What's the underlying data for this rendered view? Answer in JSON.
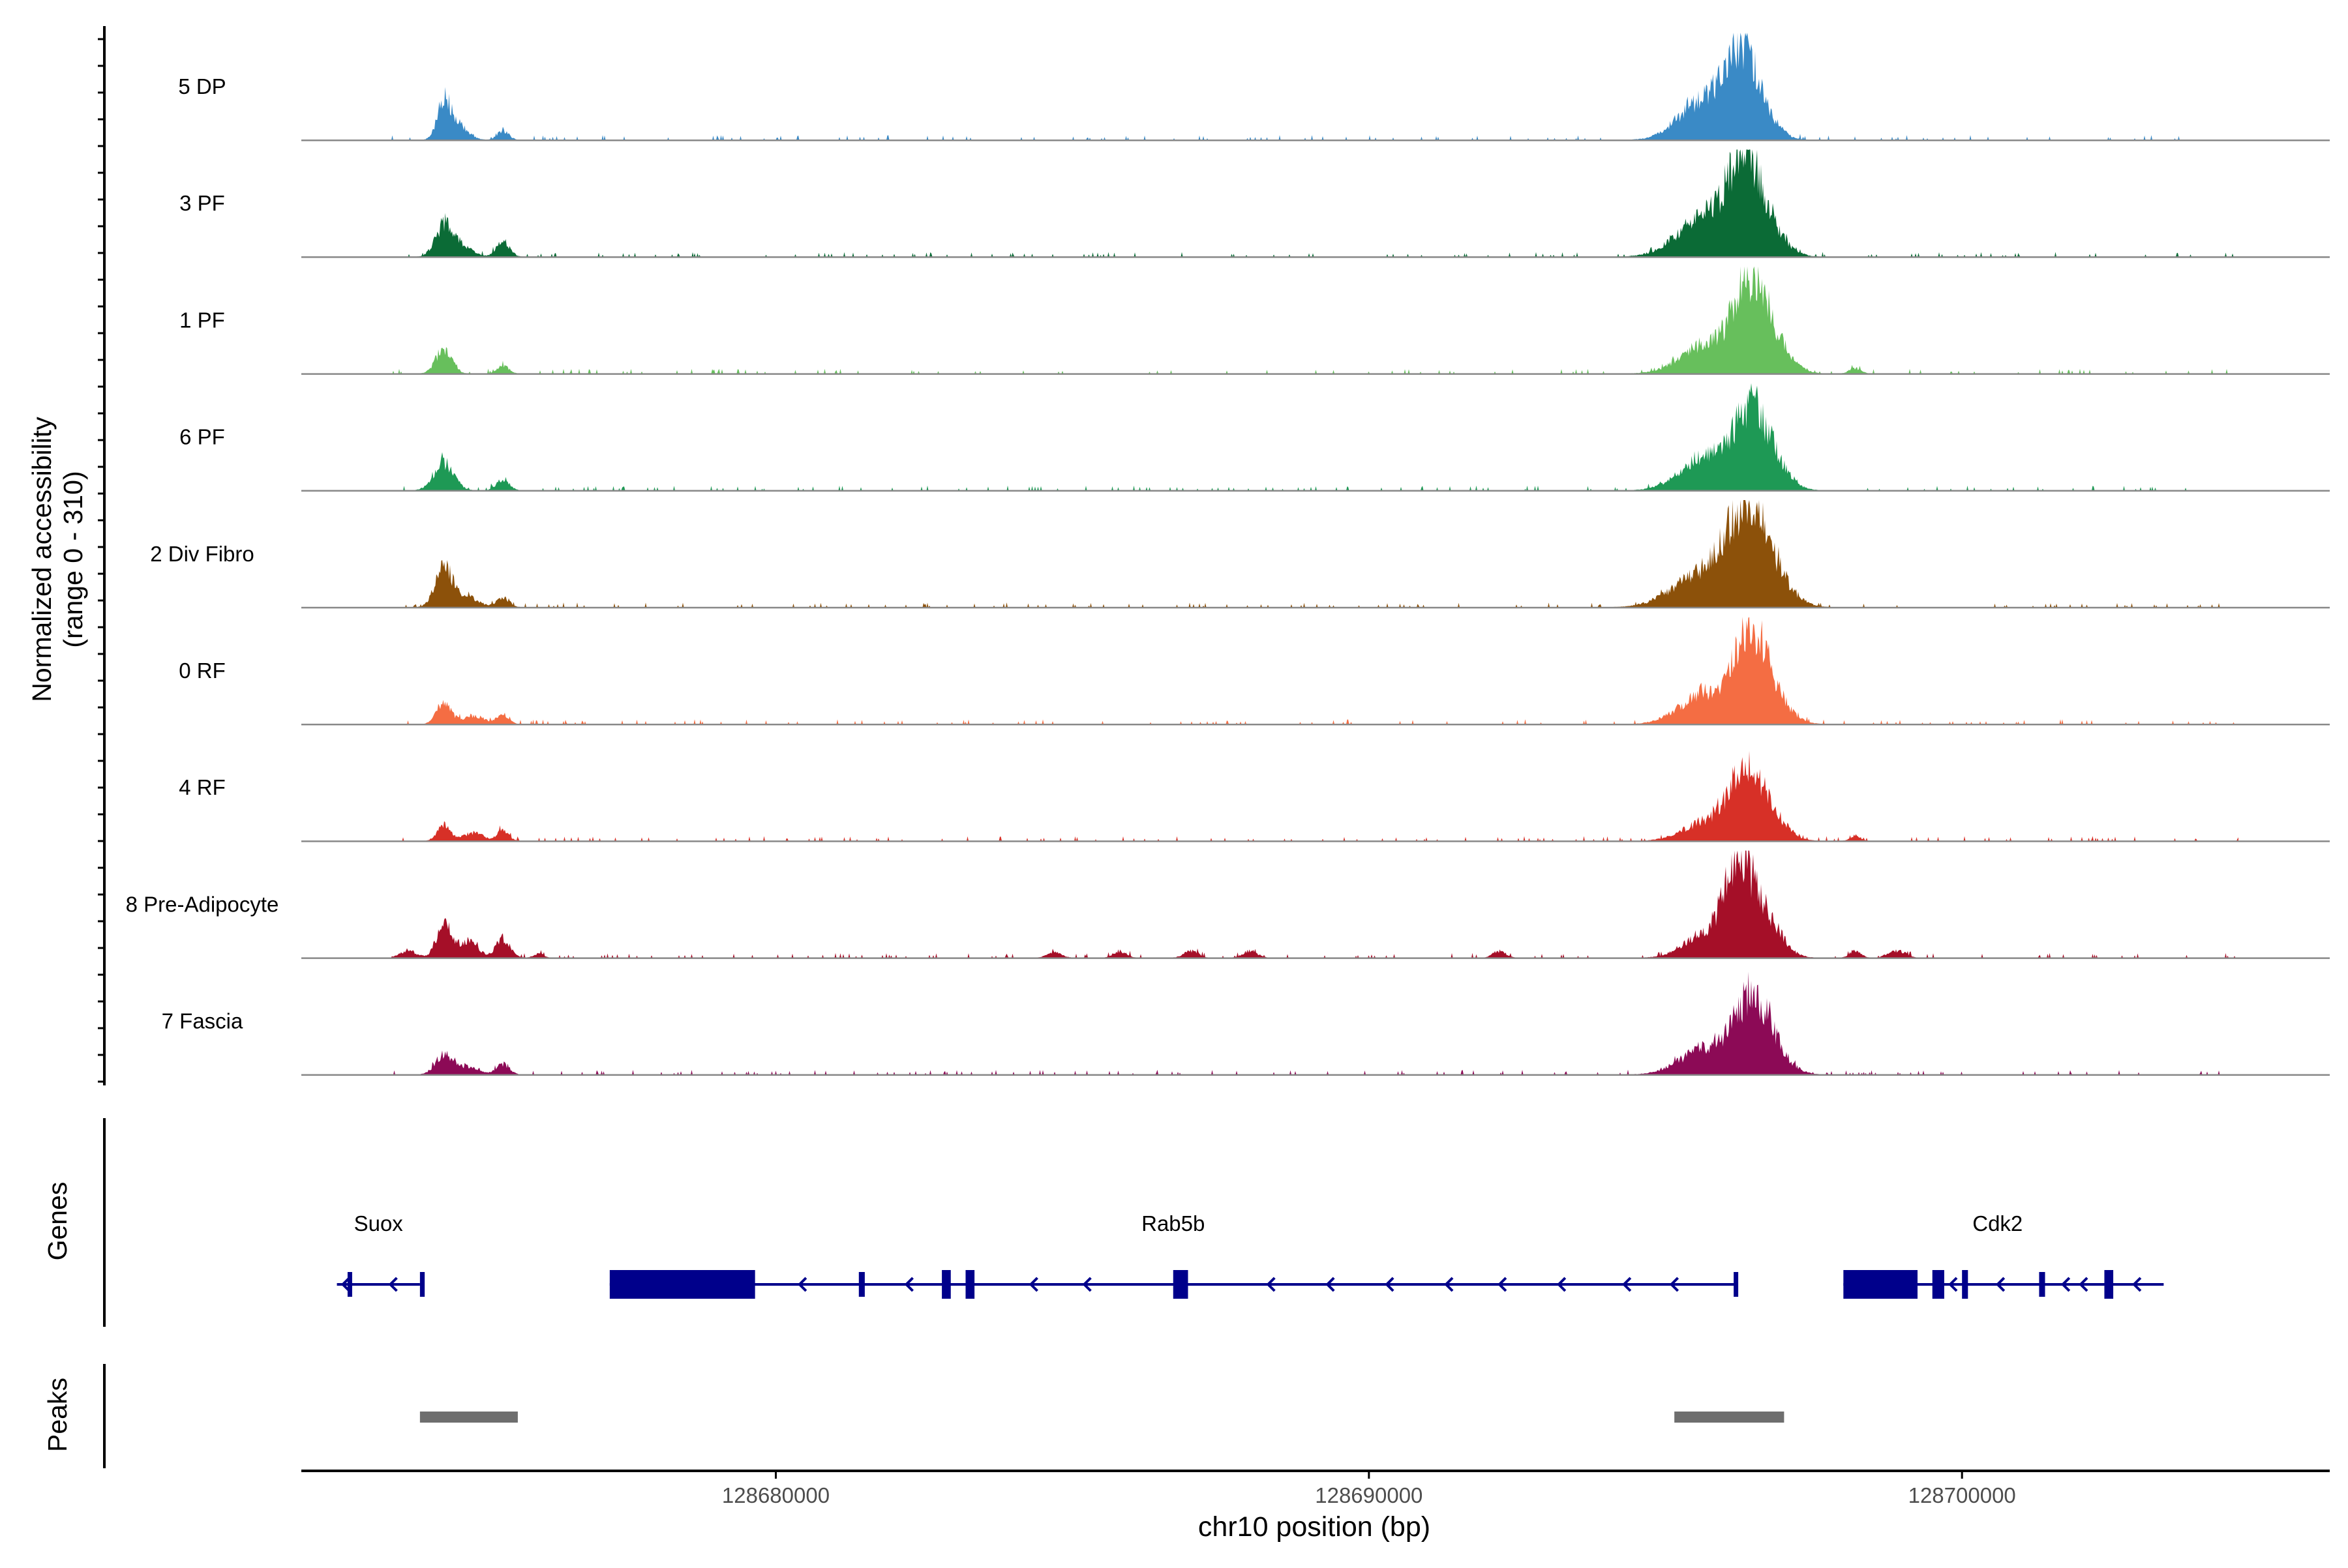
{
  "chart_data": {
    "type": "area",
    "ylabel_line1": "Normalized accessibility",
    "ylabel_line2": "(range 0 - 310)",
    "xlabel": "chr10 position (bp)",
    "xlim": [
      128672000,
      128706200
    ],
    "ylim": [
      0,
      310
    ],
    "x_ticks": [
      128680000,
      128690000,
      128700000
    ],
    "x_tick_labels": [
      "128680000",
      "128690000",
      "128700000"
    ],
    "series": [
      {
        "name": "5 DP",
        "color": "#3A8AC6",
        "peaks": [
          [
            128674400,
            120,
            0.9
          ],
          [
            128674600,
            60,
            1.5
          ],
          [
            128675400,
            35,
            0.8
          ],
          [
            128695600,
            140,
            3.2
          ],
          [
            128696200,
            240,
            2.0
          ],
          [
            128696500,
            150,
            2.4
          ]
        ]
      },
      {
        "name": "3 PF",
        "color": "#0B6B36",
        "peaks": [
          [
            128674400,
            110,
            1.2
          ],
          [
            128674700,
            40,
            1.5
          ],
          [
            128675400,
            60,
            0.9
          ],
          [
            128695700,
            160,
            3.8
          ],
          [
            128696300,
            250,
            2.0
          ],
          [
            128696600,
            150,
            2.6
          ]
        ]
      },
      {
        "name": "1 PF",
        "color": "#67BF5C",
        "peaks": [
          [
            128674400,
            90,
            1.1
          ],
          [
            128675400,
            30,
            0.8
          ],
          [
            128695700,
            110,
            3.5
          ],
          [
            128696400,
            250,
            2.2
          ],
          [
            128696700,
            140,
            2.6
          ],
          [
            128698200,
            20,
            0.8
          ]
        ]
      },
      {
        "name": "6 PF",
        "color": "#1E9955",
        "peaks": [
          [
            128674400,
            100,
            1.4
          ],
          [
            128675400,
            40,
            0.9
          ],
          [
            128695700,
            130,
            3.5
          ],
          [
            128696400,
            210,
            2.3
          ],
          [
            128696700,
            120,
            2.5
          ]
        ]
      },
      {
        "name": "2 Div Fibro",
        "color": "#8C510A",
        "peaks": [
          [
            128674400,
            150,
            1.2
          ],
          [
            128674800,
            40,
            1.5
          ],
          [
            128675400,
            35,
            0.9
          ],
          [
            128695600,
            120,
            4.0
          ],
          [
            128696300,
            270,
            2.6
          ],
          [
            128696700,
            150,
            2.8
          ]
        ]
      },
      {
        "name": "0 RF",
        "color": "#F46D43",
        "peaks": [
          [
            128674400,
            80,
            1.0
          ],
          [
            128674900,
            30,
            1.6
          ],
          [
            128675400,
            35,
            0.8
          ],
          [
            128695700,
            120,
            3.5
          ],
          [
            128696400,
            250,
            2.0
          ],
          [
            128696700,
            140,
            2.5
          ]
        ]
      },
      {
        "name": "4 RF",
        "color": "#D73027",
        "peaks": [
          [
            128674400,
            60,
            0.9
          ],
          [
            128674900,
            30,
            1.4
          ],
          [
            128675400,
            40,
            0.8
          ],
          [
            128695700,
            70,
            3.2
          ],
          [
            128696300,
            200,
            2.2
          ],
          [
            128696700,
            110,
            2.4
          ],
          [
            128698200,
            20,
            0.7
          ]
        ]
      },
      {
        "name": "8 Pre-Adipocyte",
        "color": "#A50F28",
        "peaks": [
          [
            128673800,
            25,
            1.2
          ],
          [
            128674400,
            130,
            1.0
          ],
          [
            128674800,
            60,
            1.4
          ],
          [
            128675400,
            70,
            1.0
          ],
          [
            128676000,
            15,
            0.7
          ],
          [
            128684700,
            20,
            1.0
          ],
          [
            128685800,
            25,
            0.9
          ],
          [
            128687000,
            25,
            1.0
          ],
          [
            128688000,
            25,
            1.0
          ],
          [
            128692200,
            25,
            0.9
          ],
          [
            128695700,
            90,
            3.0
          ],
          [
            128696200,
            270,
            1.8
          ],
          [
            128696600,
            180,
            2.4
          ],
          [
            128698200,
            25,
            0.8
          ],
          [
            128698800,
            20,
            0.8
          ],
          [
            128699000,
            20,
            0.8
          ]
        ]
      },
      {
        "name": "7 Fascia",
        "color": "#8C0A56",
        "peaks": [
          [
            128674400,
            70,
            1.2
          ],
          [
            128674800,
            30,
            1.5
          ],
          [
            128675400,
            40,
            0.9
          ],
          [
            128695700,
            100,
            3.5
          ],
          [
            128696400,
            200,
            2.2
          ],
          [
            128696700,
            120,
            2.5
          ]
        ]
      }
    ],
    "genes": [
      {
        "name": "Suox",
        "label_x": 128673300,
        "strand": "-",
        "start": 128672600,
        "end": 128674000,
        "exons": [
          [
            128672780,
            128672840,
            "thin"
          ],
          [
            128674000,
            128674080,
            "thin"
          ]
        ],
        "arrows": [
          128672700,
          128673500
        ]
      },
      {
        "name": "Rab5b",
        "label_x": 128686700,
        "strand": "-",
        "start": 128677200,
        "end": 128696200,
        "exons": [
          [
            128677200,
            128679650,
            "thick"
          ],
          [
            128681400,
            128681500,
            "thin"
          ],
          [
            128682800,
            128682950,
            "thick"
          ],
          [
            128683200,
            128683350,
            "thick"
          ],
          [
            128686700,
            128686950,
            "thick"
          ],
          [
            128696150,
            128696220,
            "thin"
          ]
        ],
        "arrows": [
          128680400,
          128682200,
          128684300,
          128685200,
          128688300,
          128689300,
          128690300,
          128691300,
          128692200,
          128693200,
          128694300,
          128695100
        ]
      },
      {
        "name": "Cdk2",
        "label_x": 128700600,
        "strand": "-",
        "start": 128698000,
        "end": 128703400,
        "exons": [
          [
            128698000,
            128699250,
            "thick"
          ],
          [
            128699500,
            128699700,
            "thick"
          ],
          [
            128700000,
            128700100,
            "thick"
          ],
          [
            128701300,
            128701400,
            "thin"
          ],
          [
            128702400,
            128702550,
            "thick"
          ]
        ],
        "arrows": [
          128699800,
          128700600,
          128701700,
          128702000,
          128702900
        ]
      }
    ],
    "peaks_track": [
      [
        128674000,
        128675650
      ],
      [
        128695150,
        128697000
      ]
    ],
    "track_labels": {
      "genes": "Genes",
      "peaks": "Peaks"
    },
    "grid": false,
    "legend": "none"
  }
}
